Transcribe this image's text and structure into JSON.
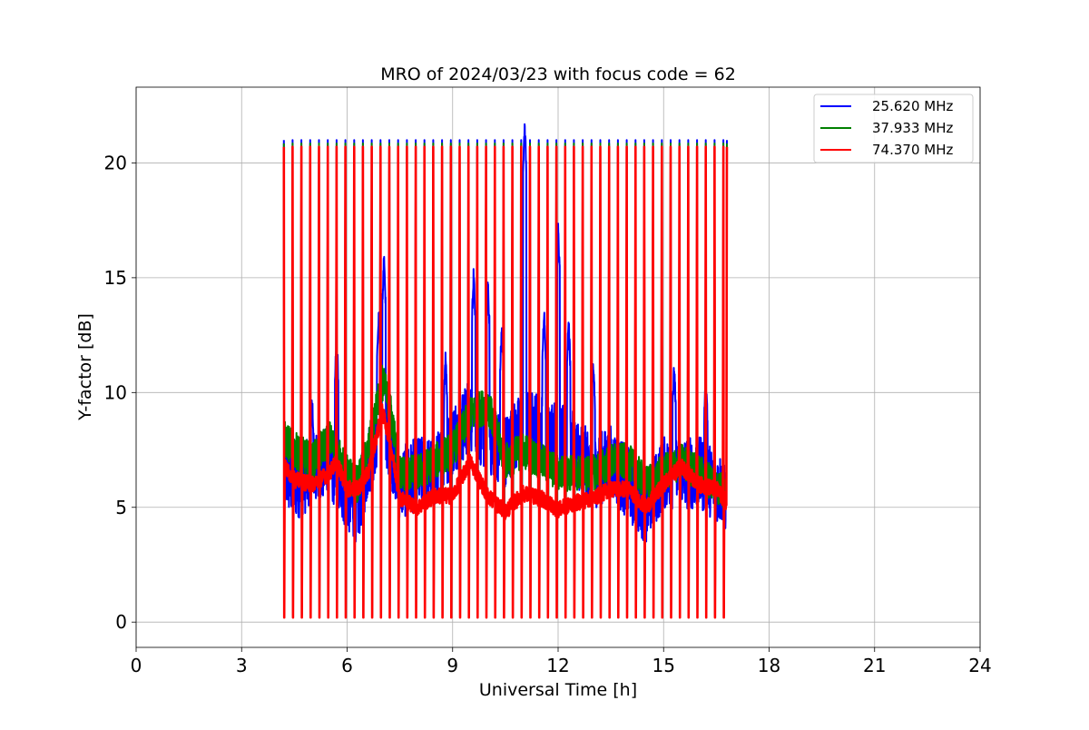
{
  "chart_data": {
    "type": "line",
    "title": "MRO of 2024/03/23 with focus code = 62",
    "xlabel": "Universal Time [h]",
    "ylabel": "Y-factor [dB]",
    "xlim": [
      0,
      24
    ],
    "ylim": [
      -1.1,
      23.3
    ],
    "x_ticks": [
      0,
      3,
      6,
      9,
      12,
      15,
      18,
      21,
      24
    ],
    "y_ticks": [
      0,
      5,
      10,
      15,
      20
    ],
    "x_tick_labels": [
      "0",
      "3",
      "6",
      "9",
      "12",
      "15",
      "18",
      "21",
      "24"
    ],
    "y_tick_labels": [
      "0",
      "5",
      "10",
      "15",
      "20"
    ],
    "grid": true,
    "legend_position": "top-right",
    "data_range_x": [
      4.2,
      16.8
    ],
    "calibration_cycle_h": 0.25,
    "calibration_high_db": 21.0,
    "calibration_low_db": 0.3,
    "series": [
      {
        "name": "25.620 MHz",
        "color": "#0000ff",
        "x": [
          4.2,
          4.5,
          5.0,
          5.5,
          6.0,
          6.3,
          6.6,
          7.0,
          7.5,
          8.0,
          8.5,
          9.0,
          9.5,
          10.0,
          10.5,
          11.0,
          11.5,
          12.0,
          12.5,
          13.0,
          13.5,
          14.0,
          14.5,
          15.0,
          15.5,
          16.0,
          16.5,
          16.8
        ],
        "values": [
          6.5,
          6.0,
          6.5,
          7.0,
          5.5,
          5.0,
          7.0,
          9.0,
          6.0,
          6.5,
          6.5,
          8.0,
          9.0,
          8.0,
          7.5,
          8.5,
          8.5,
          8.0,
          7.5,
          6.5,
          7.0,
          6.0,
          5.0,
          6.5,
          6.5,
          6.5,
          6.0,
          5.5
        ],
        "peaks": [
          [
            5.0,
            10.2
          ],
          [
            5.7,
            12.9
          ],
          [
            6.9,
            13.8
          ],
          [
            7.05,
            16.2
          ],
          [
            8.8,
            12.0
          ],
          [
            9.6,
            15.6
          ],
          [
            10.0,
            15.3
          ],
          [
            10.4,
            13.3
          ],
          [
            11.05,
            22.1
          ],
          [
            11.6,
            13.9
          ],
          [
            12.0,
            17.5
          ],
          [
            12.3,
            13.5
          ],
          [
            13.0,
            11.8
          ],
          [
            15.3,
            11.6
          ],
          [
            16.2,
            11.0
          ]
        ]
      },
      {
        "name": "37.933 MHz",
        "color": "#008000",
        "x": [
          4.2,
          4.5,
          5.0,
          5.5,
          6.0,
          6.3,
          6.6,
          7.0,
          7.2,
          7.5,
          8.0,
          8.5,
          9.0,
          9.5,
          10.0,
          10.5,
          11.0,
          11.5,
          12.0,
          12.5,
          13.0,
          13.5,
          14.0,
          14.5,
          15.0,
          15.5,
          16.0,
          16.5,
          16.8
        ],
        "values": [
          8.0,
          7.5,
          7.0,
          8.0,
          6.5,
          6.0,
          7.5,
          10.5,
          9.5,
          6.5,
          6.5,
          7.0,
          7.5,
          9.0,
          9.5,
          7.0,
          7.5,
          7.0,
          6.5,
          6.5,
          6.5,
          7.0,
          7.0,
          6.0,
          6.5,
          7.0,
          6.5,
          6.0,
          5.5
        ]
      },
      {
        "name": "74.370 MHz",
        "color": "#ff0000",
        "x": [
          4.2,
          4.5,
          5.0,
          5.5,
          5.7,
          6.0,
          6.3,
          6.6,
          7.0,
          7.2,
          7.5,
          8.0,
          8.5,
          9.0,
          9.5,
          10.0,
          10.5,
          11.0,
          11.5,
          12.0,
          12.5,
          13.0,
          13.5,
          14.0,
          14.5,
          15.0,
          15.5,
          16.0,
          16.5,
          16.8
        ],
        "values": [
          6.8,
          6.2,
          6.0,
          6.5,
          7.0,
          5.8,
          5.8,
          6.5,
          9.2,
          8.0,
          5.4,
          5.0,
          5.5,
          5.5,
          7.0,
          5.5,
          4.8,
          5.6,
          5.4,
          4.9,
          5.2,
          5.4,
          5.8,
          5.8,
          5.0,
          6.0,
          6.8,
          6.0,
          5.8,
          5.2
        ]
      }
    ]
  }
}
